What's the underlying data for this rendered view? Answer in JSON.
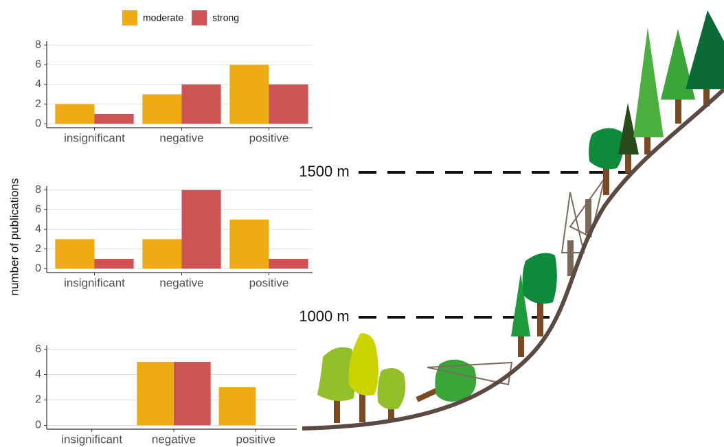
{
  "chart_data": [
    {
      "type": "bar",
      "categories": [
        "insignificant",
        "negative",
        "positive"
      ],
      "series": [
        {
          "name": "moderate",
          "color": "#eeab14",
          "values": [
            2,
            3,
            6
          ]
        },
        {
          "name": "strong",
          "color": "#cd5355",
          "values": [
            1,
            4,
            4
          ]
        }
      ],
      "ylim": [
        -0.4,
        8.4
      ],
      "yticks": [
        0,
        2,
        4,
        6,
        8
      ],
      "grid": true
    },
    {
      "type": "bar",
      "ylabel": "number of publications",
      "categories": [
        "insignificant",
        "negative",
        "positive"
      ],
      "series": [
        {
          "color": "#eeab14",
          "values": [
            3,
            3,
            5
          ]
        },
        {
          "color": "#cd5355",
          "values": [
            1,
            8,
            1
          ]
        }
      ],
      "ylim": [
        -0.4,
        8.4
      ],
      "yticks": [
        0,
        2,
        4,
        6,
        8
      ],
      "grid": true
    },
    {
      "type": "bar",
      "categories": [
        "insignificant",
        "negative",
        "positive"
      ],
      "series": [
        {
          "color": "#eeab14",
          "values": [
            null,
            5,
            3
          ]
        },
        {
          "color": "#cd5355",
          "values": [
            null,
            5,
            null
          ]
        }
      ],
      "ylim": [
        -0.3,
        6.3
      ],
      "yticks": [
        0,
        2,
        4,
        6
      ],
      "grid": true
    }
  ],
  "illustration": {
    "elevation_labels": [
      "1500 m",
      "1000 m"
    ]
  }
}
